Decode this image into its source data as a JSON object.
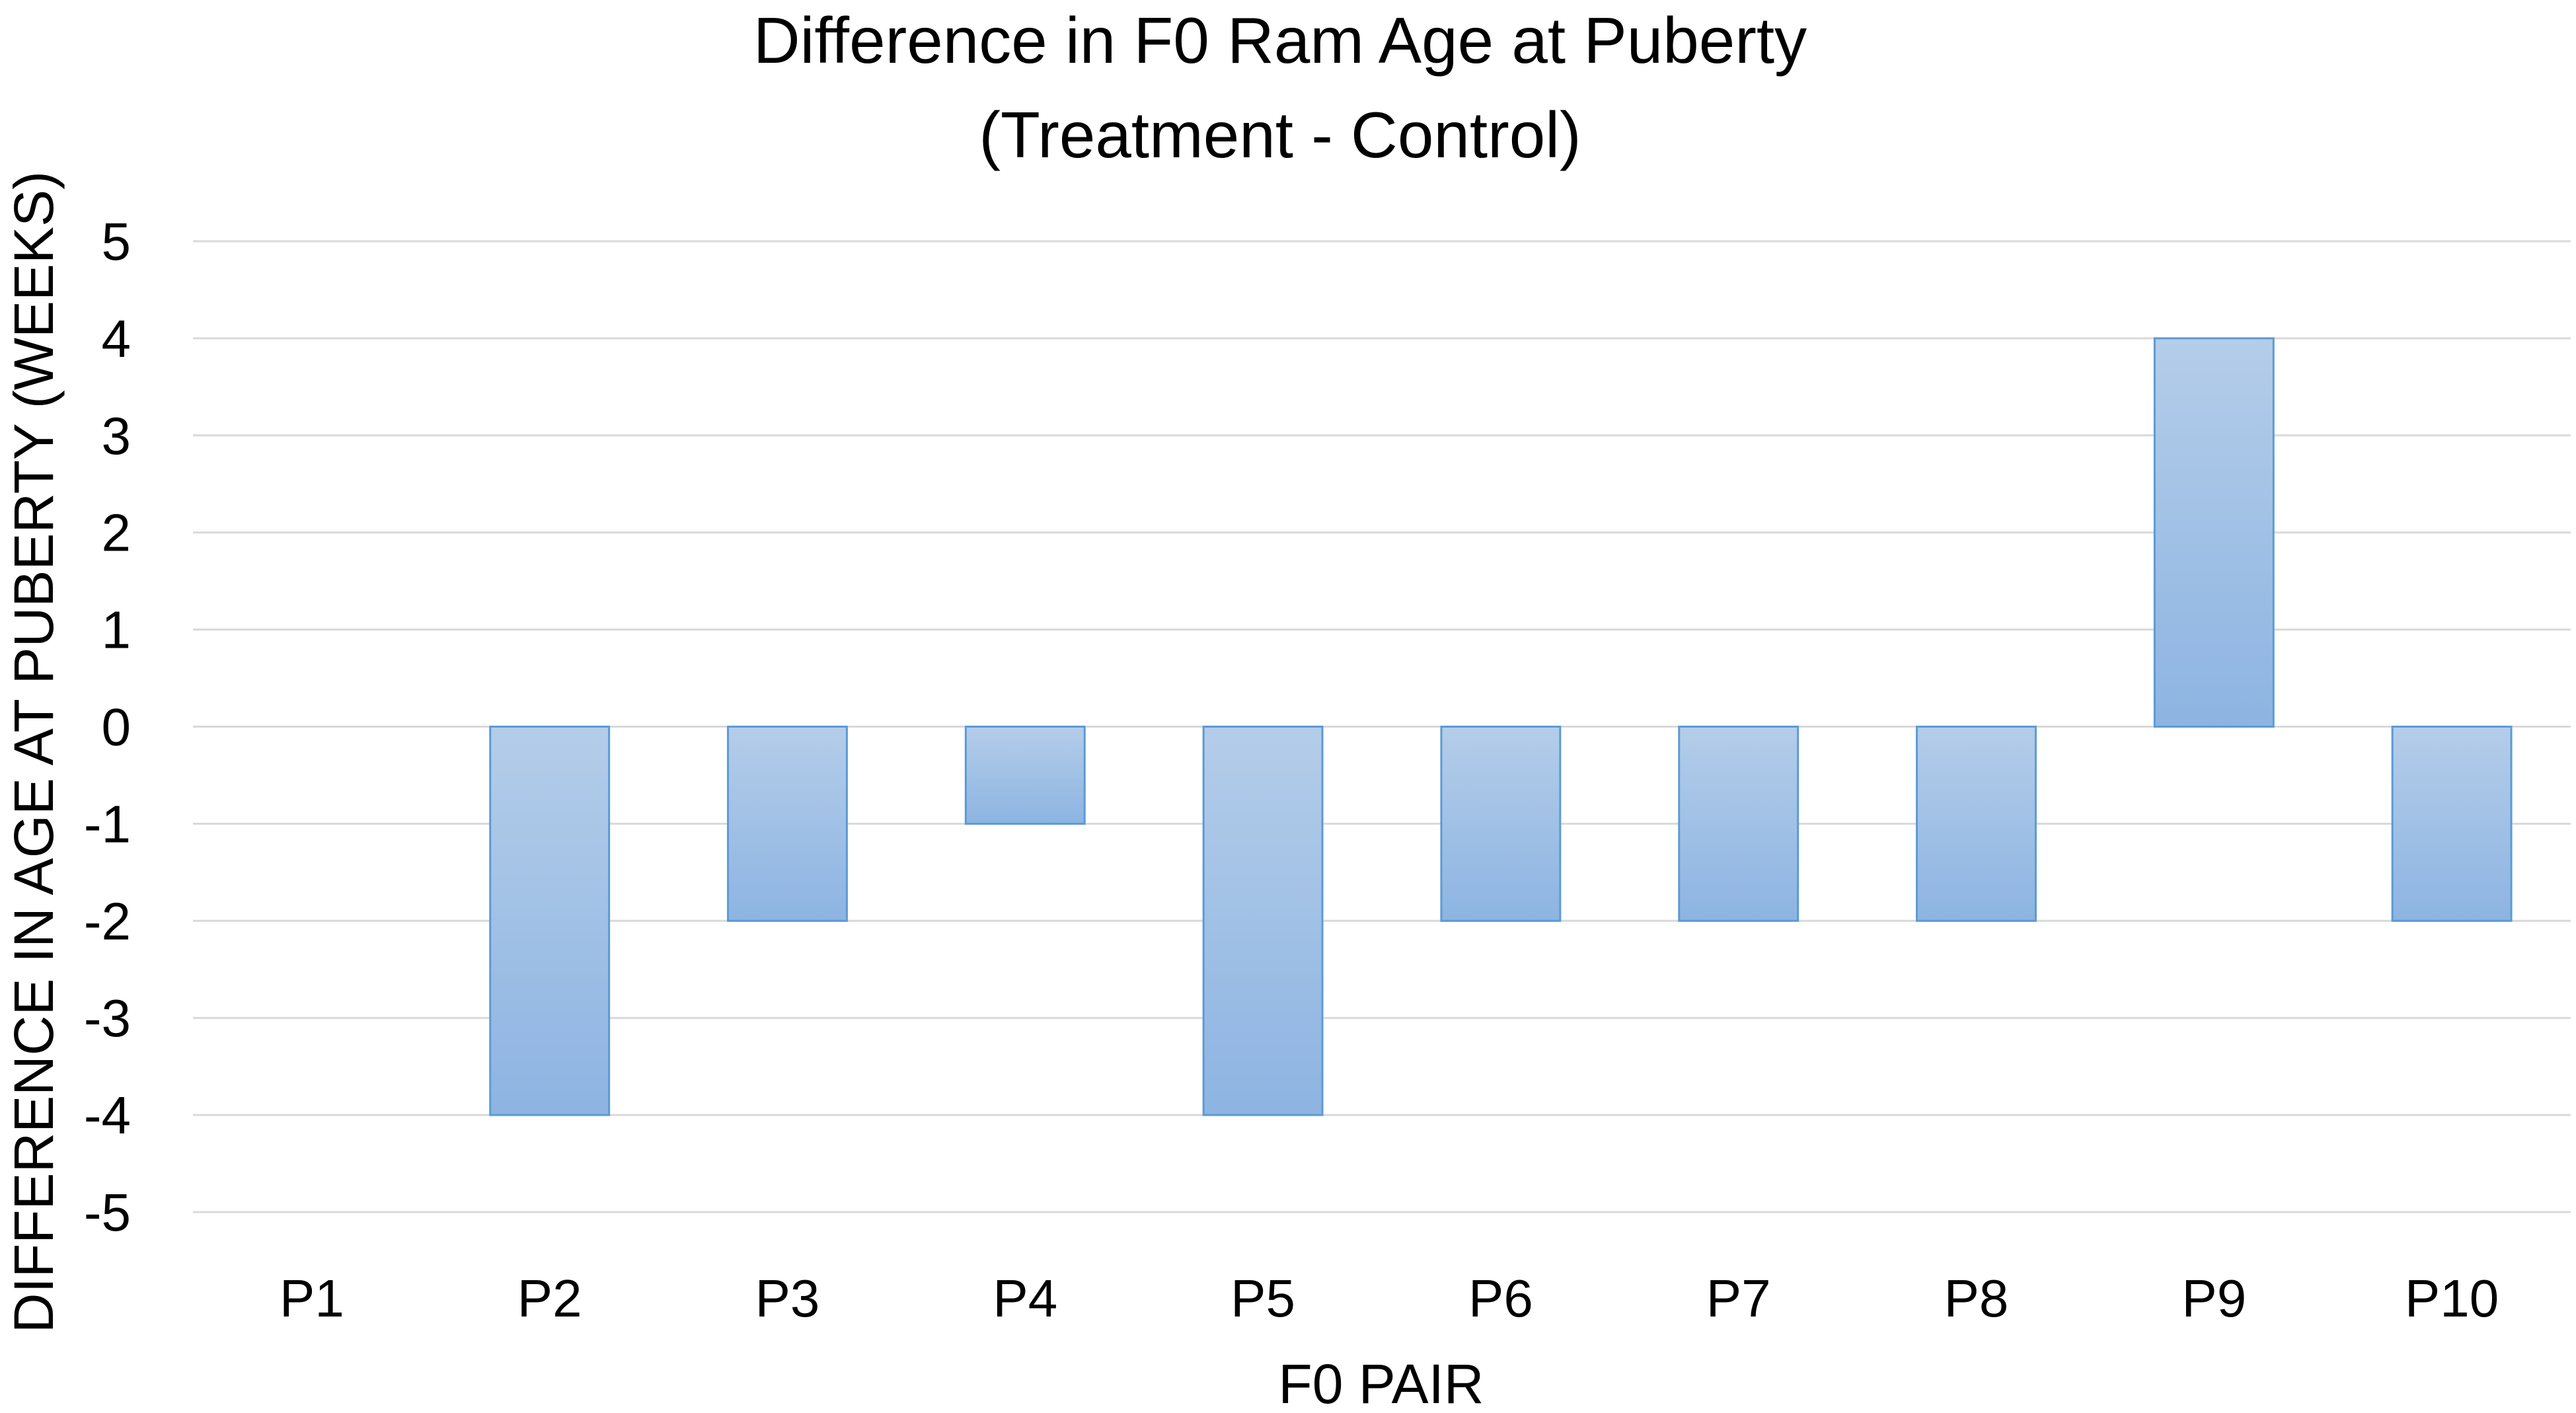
{
  "chart_data": {
    "type": "bar",
    "title": [
      "Difference in F0 Ram Age at Puberty",
      "(Treatment - Control)"
    ],
    "xlabel": "F0 PAIR",
    "ylabel": "DIFFERENCE IN AGE AT PUBERTY (WEEKS)",
    "categories": [
      "P1",
      "P2",
      "P3",
      "P4",
      "P5",
      "P6",
      "P7",
      "P8",
      "P9",
      "P10"
    ],
    "series": [
      {
        "name": "Difference (Treatment - Control)",
        "values": [
          0,
          -4,
          -2,
          -1,
          -4,
          -2,
          -2,
          -2,
          4,
          -2
        ]
      }
    ],
    "ylim": [
      -5,
      5
    ],
    "yticks": [
      5,
      4,
      3,
      2,
      1,
      0,
      -1,
      -2,
      -3,
      -4,
      -5
    ],
    "grid": true,
    "legend": "none",
    "colors": {
      "bar_fill_top": "#b4cde9",
      "bar_fill_bottom": "#8db4e2",
      "bar_stroke": "#5b9bd5",
      "gridline": "#d9d9d9"
    }
  }
}
